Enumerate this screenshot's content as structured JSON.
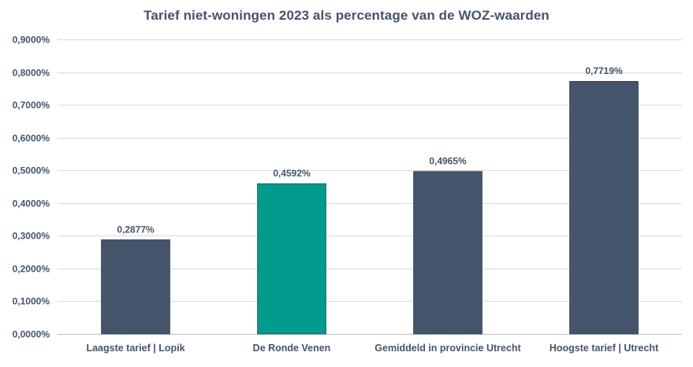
{
  "colors": {
    "bar_default": "#44546a",
    "bar_highlight": "#009b8d",
    "text": "#44546a",
    "grid": "#d9d9d9"
  },
  "chart_data": {
    "type": "bar",
    "title": "Tarief niet-woningen 2023 als percentage van de WOZ-waarden",
    "xlabel": "",
    "ylabel": "",
    "categories": [
      "Laagste tarief | Lopik",
      "De Ronde Venen",
      "Gemiddeld in provincie Utrecht",
      "Hoogste tarief | Utrecht"
    ],
    "values": [
      0.2877,
      0.4592,
      0.4965,
      0.7719
    ],
    "data_labels": [
      "0,2877%",
      "0,4592%",
      "0,4965%",
      "0,7719%"
    ],
    "bar_colors": [
      "#44546a",
      "#009b8d",
      "#44546a",
      "#44546a"
    ],
    "ylim": [
      0,
      0.9
    ],
    "yticks": [
      0,
      0.1,
      0.2,
      0.3,
      0.4,
      0.5,
      0.6,
      0.7,
      0.8,
      0.9
    ],
    "ytick_labels": [
      "0,0000%",
      "0,1000%",
      "0,2000%",
      "0,3000%",
      "0,4000%",
      "0,5000%",
      "0,6000%",
      "0,7000%",
      "0,8000%",
      "0,9000%"
    ],
    "grid": true,
    "legend": "none"
  }
}
